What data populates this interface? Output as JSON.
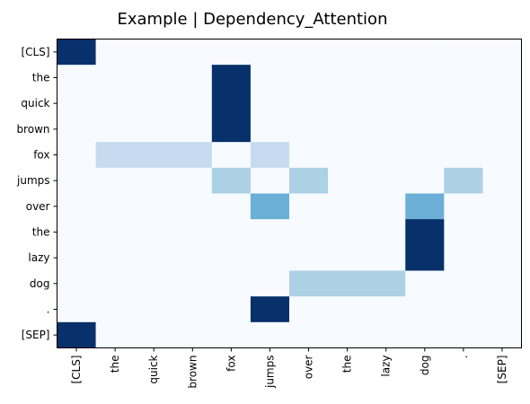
{
  "chart_data": {
    "type": "heatmap",
    "title": "Example | Dependency_Attention",
    "xlabel": "",
    "ylabel": "",
    "x_tick_labels": [
      "[CLS]",
      "the",
      "quick",
      "brown",
      "fox",
      "jumps",
      "over",
      "the",
      "lazy",
      "dog",
      ".",
      "[SEP]"
    ],
    "y_tick_labels": [
      "[CLS]",
      "the",
      "quick",
      "brown",
      "fox",
      "jumps",
      "over",
      "the",
      "lazy",
      "dog",
      ".",
      "[SEP]"
    ],
    "colormap": "Blues",
    "value_range": [
      0,
      1
    ],
    "values": [
      [
        1,
        0,
        0,
        0,
        0,
        0,
        0,
        0,
        0,
        0,
        0,
        0
      ],
      [
        0,
        0,
        0,
        0,
        1,
        0,
        0,
        0,
        0,
        0,
        0,
        0
      ],
      [
        0,
        0,
        0,
        0,
        1,
        0,
        0,
        0,
        0,
        0,
        0,
        0
      ],
      [
        0,
        0,
        0,
        0,
        1,
        0,
        0,
        0,
        0,
        0,
        0,
        0
      ],
      [
        0,
        0.25,
        0.25,
        0.25,
        0,
        0.25,
        0,
        0,
        0,
        0,
        0,
        0
      ],
      [
        0,
        0,
        0,
        0,
        0.33,
        0,
        0.33,
        0,
        0,
        0,
        0.33,
        0
      ],
      [
        0,
        0,
        0,
        0,
        0,
        0.5,
        0,
        0,
        0,
        0.5,
        0,
        0
      ],
      [
        0,
        0,
        0,
        0,
        0,
        0,
        0,
        0,
        0,
        1,
        0,
        0
      ],
      [
        0,
        0,
        0,
        0,
        0,
        0,
        0,
        0,
        0,
        1,
        0,
        0
      ],
      [
        0,
        0,
        0,
        0,
        0,
        0,
        0.33,
        0.33,
        0.33,
        0,
        0,
        0
      ],
      [
        0,
        0,
        0,
        0,
        0,
        1,
        0,
        0,
        0,
        0,
        0,
        0
      ],
      [
        1,
        0,
        0,
        0,
        0,
        0,
        0,
        0,
        0,
        0,
        0,
        0
      ]
    ]
  }
}
